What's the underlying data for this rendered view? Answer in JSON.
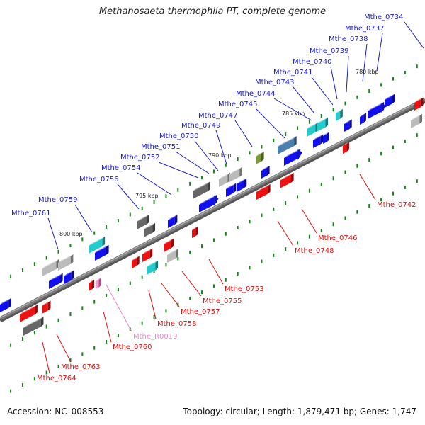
{
  "title": "Methanosaeta thermophila PT, complete genome",
  "footer": {
    "accession": "Accession: NC_008553",
    "stats": "Topology: circular; Length: 1,879,471 bp; Genes: 1,747"
  },
  "colors": {
    "backbone": "#7a7a7a",
    "tick": "#22aa22",
    "forward_label": "#1a1acc",
    "reverse_label": "#dd1111",
    "rna_label": "#ee88cc",
    "forward_gene": "#1010ee",
    "reverse_gene": "#ee1111",
    "cyan_gene": "#22cccc",
    "gray_gene": "#bbbbbb",
    "dark_gene": "#666666",
    "steel_gene": "#4a7fb0",
    "olive_gene": "#7a9a3a",
    "rna_gene": "#ff99dd"
  },
  "scale_labels": [
    "780 kbp",
    "785 kbp",
    "790 kbp",
    "795 kbp",
    "800 kbp"
  ],
  "forward_genes": [
    {
      "label": "Mthe_0734",
      "color_key": "forward_gene"
    },
    {
      "label": "Mthe_0737",
      "color_key": "forward_gene"
    },
    {
      "label": "Mthe_0738",
      "color_key": "forward_gene"
    },
    {
      "label": "Mthe_0739",
      "color_key": "forward_gene"
    },
    {
      "label": "Mthe_0740",
      "color_key": "cyan_gene"
    },
    {
      "label": "Mthe_0741",
      "color_key": "cyan_gene"
    },
    {
      "label": "Mthe_0743",
      "color_key": "forward_gene"
    },
    {
      "label": "Mthe_0744",
      "color_key": "cyan_gene"
    },
    {
      "label": "Mthe_0745",
      "color_key": "steel_gene"
    },
    {
      "label": "Mthe_0747",
      "color_key": "olive_gene"
    },
    {
      "label": "Mthe_0749",
      "color_key": "forward_gene"
    },
    {
      "label": "Mthe_0750",
      "color_key": "gray_gene"
    },
    {
      "label": "Mthe_0751",
      "color_key": "gray_gene"
    },
    {
      "label": "Mthe_0752",
      "color_key": "dark_gene"
    },
    {
      "label": "Mthe_0754",
      "color_key": "forward_gene"
    },
    {
      "label": "Mthe_0756",
      "color_key": "dark_gene"
    },
    {
      "label": "Mthe_0759",
      "color_key": "cyan_gene"
    },
    {
      "label": "Mthe_0761",
      "color_key": "gray_gene"
    }
  ],
  "reverse_genes": [
    {
      "label": "Mthe_0742",
      "color_key": "reverse_gene"
    },
    {
      "label": "Mthe_0746",
      "color_key": "reverse_gene"
    },
    {
      "label": "Mthe_0748",
      "color_key": "reverse_gene"
    },
    {
      "label": "Mthe_0753",
      "color_key": "gray_gene"
    },
    {
      "label": "Mthe_0755",
      "color_key": "reverse_gene"
    },
    {
      "label": "Mthe_0757",
      "color_key": "reverse_gene"
    },
    {
      "label": "Mthe_0758",
      "color_key": "cyan_gene"
    },
    {
      "label": "Mthe_0760",
      "color_key": "reverse_gene"
    },
    {
      "label": "Mthe_0763",
      "color_key": "reverse_gene"
    },
    {
      "label": "Mthe_0764",
      "color_key": "dark_gene"
    }
  ],
  "rna_genes": [
    {
      "label": "Mthe_R0019",
      "color_key": "rna_gene"
    }
  ]
}
